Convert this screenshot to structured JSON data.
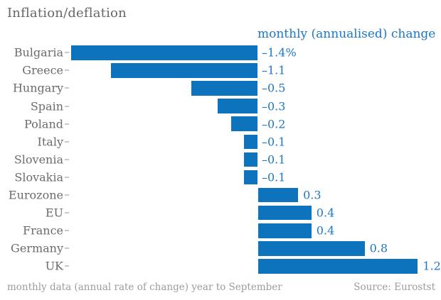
{
  "header": {
    "title": "Inflation/deflation"
  },
  "chart_data": {
    "type": "bar",
    "orientation": "horizontal",
    "title": "Inflation/deflation",
    "series_label": "monthly (annualised) change",
    "categories": [
      "Bulgaria",
      "Greece",
      "Hungary",
      "Spain",
      "Poland",
      "Italy",
      "Slovenia",
      "Slovakia",
      "Eurozone",
      "EU",
      "France",
      "Germany",
      "UK"
    ],
    "values": [
      -1.4,
      -1.1,
      -0.5,
      -0.3,
      -0.2,
      -0.1,
      -0.1,
      -0.1,
      0.3,
      0.4,
      0.4,
      0.8,
      1.2
    ],
    "value_labels": [
      "–1.4%",
      "–1.1",
      "–0.5",
      "–0.3",
      "–0.2",
      "–0.1",
      "–0.1",
      "–0.1",
      "0.3",
      "0.4",
      "0.4",
      "0.8",
      "1.2"
    ],
    "unit": "percent (annualised monthly change)",
    "xlim": [
      -1.4,
      1.2
    ],
    "grid": false,
    "legend_position": "top-right",
    "bar_color": "#0e73bd",
    "value_text_color": "#1b77c8",
    "label_text_color": "#6b6b6b"
  },
  "footer": {
    "note": "monthly data (annual rate of change) year to September",
    "source": "Source: Eurostst"
  }
}
